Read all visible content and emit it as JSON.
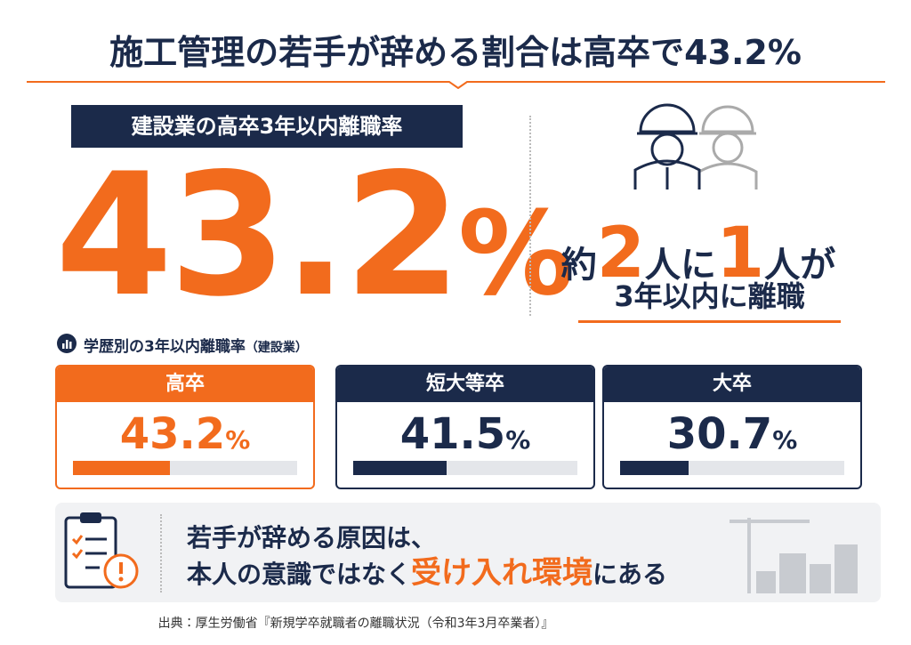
{
  "header": {
    "title": "施工管理の若手が辞める割合は高卒で43.2%"
  },
  "hero": {
    "badge": "建設業の高卒3年以内離職率",
    "value": "43.2",
    "unit": "%"
  },
  "ratio": {
    "prefix": "約",
    "first_number": "2",
    "middle": "人に",
    "second_number": "1",
    "suffix": "人が",
    "caption": "3年以内に離職"
  },
  "breakdown": {
    "label": "学歴別の3年以内離職率",
    "note": "（建設業）",
    "cards": [
      {
        "label": "高卒",
        "value": 43.2,
        "unit": "%"
      },
      {
        "label": "短大等卒",
        "value": 41.5,
        "unit": "%"
      },
      {
        "label": "大卒",
        "value": 30.7,
        "unit": "%"
      }
    ]
  },
  "cause": {
    "line1": "若手が辞める原因は、",
    "line2_before": "本人の意識ではなく",
    "line2_highlight": "受け入れ環境",
    "line2_after": "にある"
  },
  "source": "出典：厚生労働省『新規学卒就職者の離職状況（令和3年3月卒業者）』"
}
